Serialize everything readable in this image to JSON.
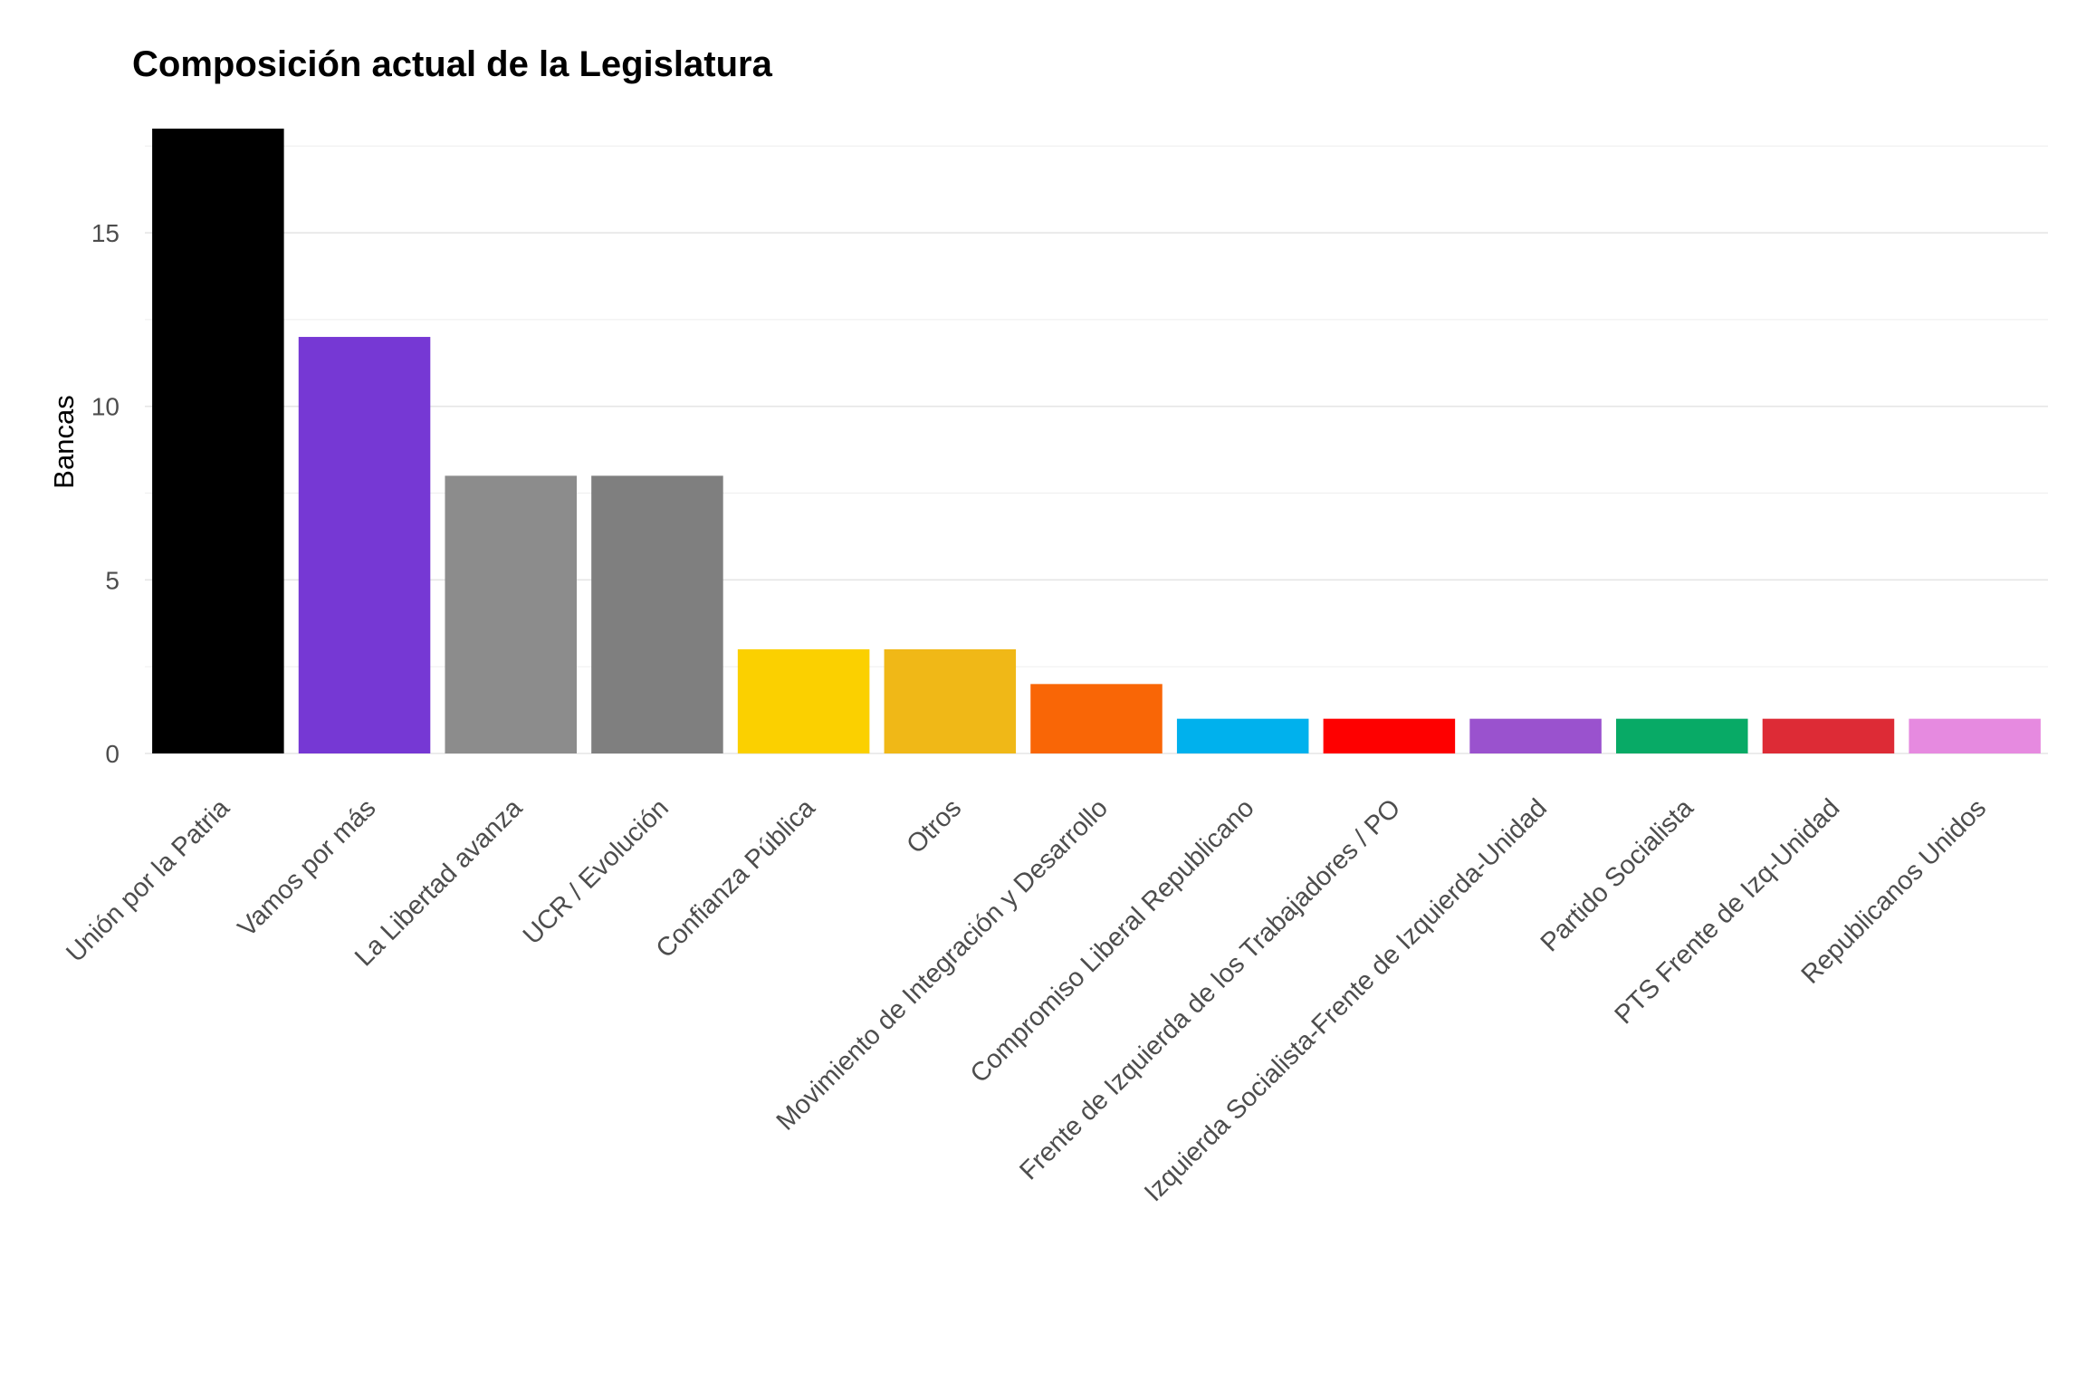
{
  "chart_data": {
    "type": "bar",
    "title": "Composición actual de la Legislatura",
    "xlabel": "",
    "ylabel": "Bancas",
    "ylim": [
      0,
      18
    ],
    "yticks": [
      0,
      5,
      10,
      15
    ],
    "grid": true,
    "legend": "none",
    "categories": [
      "Unión por la Patria",
      "Vamos por más",
      "La Libertad avanza",
      "UCR / Evolución",
      "Confianza Pública",
      "Otros",
      "Movimiento de Integración y Desarrollo",
      "Compromiso Liberal Republicano",
      "Frente de Izquierda de los Trabajadores / PO",
      "Izquierda Socialista-Frente de Izquierda-Unidad",
      "Partido Socialista",
      "PTS Frente de Izq-Unidad",
      "Republicanos Unidos"
    ],
    "values": [
      18,
      12,
      8,
      8,
      3,
      3,
      2,
      1,
      1,
      1,
      1,
      1,
      1
    ],
    "colors": [
      "#000000",
      "#7638d4",
      "#8c8c8c",
      "#7f7f7f",
      "#fbd000",
      "#f0b817",
      "#f96606",
      "#00b1ed",
      "#fe0000",
      "#9a52ce",
      "#08aa66",
      "#dd2b36",
      "#e68ae0"
    ]
  }
}
